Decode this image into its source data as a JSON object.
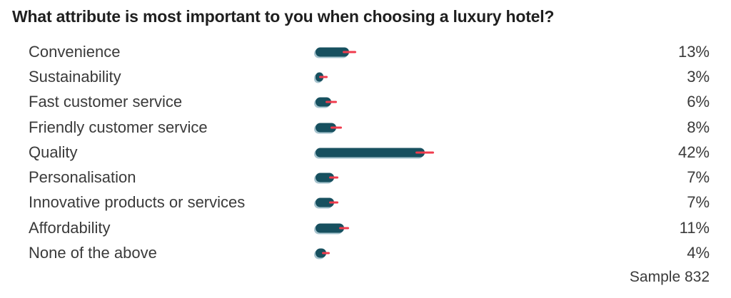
{
  "title": "What attribute is most important to you when choosing a luxury hotel?",
  "sample_note": "Sample 832",
  "colors": {
    "bar": "#17505f",
    "bar_shadow": "#a5c3ce",
    "error_bar": "#f03b4d",
    "title_text": "#1f1f1f",
    "label_text": "#3a3a3a"
  },
  "chart_data": {
    "type": "bar",
    "orientation": "horizontal",
    "title": "What attribute is most important to you when choosing a luxury hotel?",
    "categories": [
      "Convenience",
      "Sustainability",
      "Fast customer service",
      "Friendly customer service",
      "Quality",
      "Personalisation",
      "Innovative products or services",
      "Affordability",
      "None of the above"
    ],
    "values": [
      13,
      3,
      6,
      8,
      42,
      7,
      7,
      11,
      4
    ],
    "value_labels": [
      "13%",
      "3%",
      "6%",
      "8%",
      "42%",
      "7%",
      "7%",
      "11%",
      "4%"
    ],
    "error_margins_pct_points": [
      2.5,
      1.6,
      2.2,
      2.2,
      3.6,
      1.9,
      1.9,
      1.9,
      1.6
    ],
    "unit": "%",
    "xlabel": "",
    "ylabel": "",
    "grid": false,
    "legend": false,
    "axis_visible": false,
    "annotations": [
      "Sample 832"
    ]
  }
}
